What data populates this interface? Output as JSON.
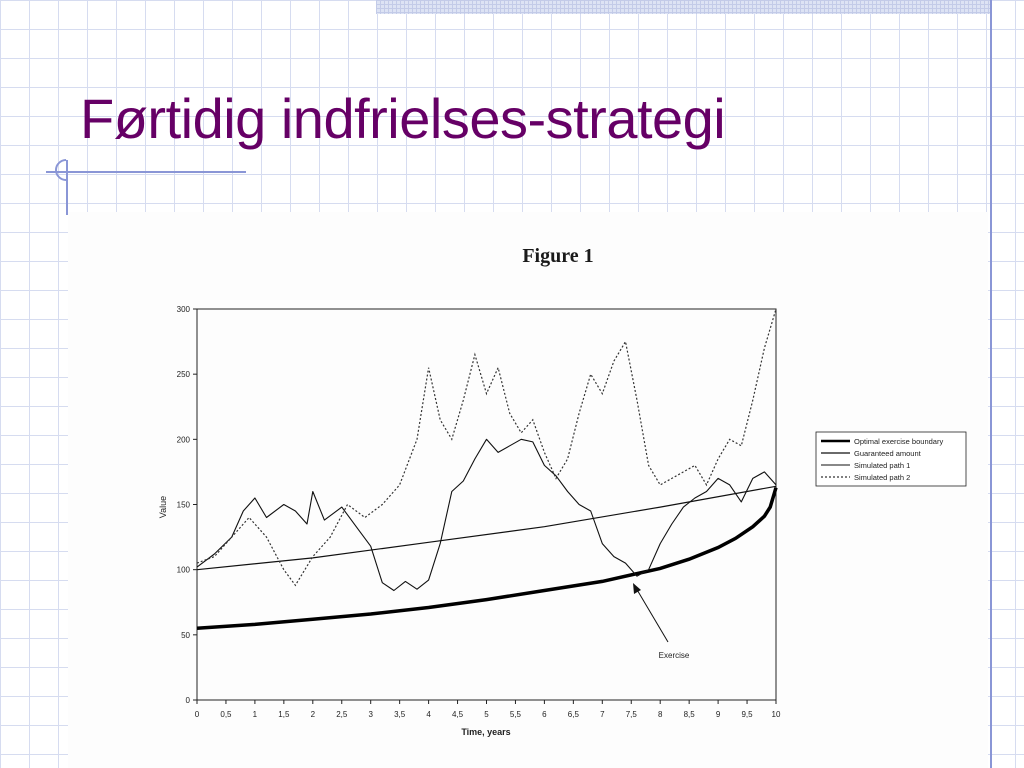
{
  "slide": {
    "title": "Førtidig indfrielses-strategi"
  },
  "chart_data": {
    "type": "line",
    "title": "Figure 1",
    "xlabel": "Time, years",
    "ylabel": "Value",
    "xlim": [
      0,
      10
    ],
    "ylim": [
      0,
      300
    ],
    "xticks": [
      "0",
      "0,5",
      "1",
      "1,5",
      "2",
      "2,5",
      "3",
      "3,5",
      "4",
      "4,5",
      "5",
      "5,5",
      "6",
      "6,5",
      "7",
      "7,5",
      "8",
      "8,5",
      "9",
      "9,5",
      "10"
    ],
    "yticks": [
      "0",
      "50",
      "100",
      "150",
      "200",
      "250",
      "300"
    ],
    "legend_position": "right",
    "annotation": {
      "text": "Exercise",
      "x": 7.5,
      "y": 95
    },
    "series": [
      {
        "name": "Optimal exercise boundary",
        "style": "bold",
        "x": [
          0,
          1,
          2,
          3,
          4,
          5,
          6,
          7,
          8,
          8.5,
          9,
          9.3,
          9.6,
          9.8,
          9.9,
          10
        ],
        "y": [
          55,
          58,
          62,
          66,
          71,
          77,
          84,
          91,
          101,
          108,
          117,
          124,
          133,
          141,
          148,
          163
        ]
      },
      {
        "name": "Guaranteed amount",
        "style": "solid",
        "x": [
          0,
          2,
          4,
          6,
          8,
          10
        ],
        "y": [
          100,
          109,
          121,
          133,
          148,
          164
        ]
      },
      {
        "name": "Simulated path 1",
        "style": "thin",
        "x": [
          0,
          0.3,
          0.6,
          0.8,
          1.0,
          1.2,
          1.5,
          1.7,
          1.9,
          2.0,
          2.2,
          2.5,
          2.8,
          3.0,
          3.2,
          3.4,
          3.6,
          3.8,
          4.0,
          4.2,
          4.4,
          4.6,
          4.8,
          5.0,
          5.2,
          5.4,
          5.6,
          5.8,
          6.0,
          6.2,
          6.4,
          6.6,
          6.8,
          7.0,
          7.2,
          7.4,
          7.6,
          7.8,
          8.0,
          8.2,
          8.4,
          8.6,
          8.8,
          9.0,
          9.2,
          9.4,
          9.6,
          9.8,
          10.0
        ],
        "y": [
          102,
          112,
          125,
          145,
          155,
          140,
          150,
          145,
          135,
          160,
          138,
          148,
          130,
          118,
          90,
          84,
          91,
          85,
          92,
          120,
          160,
          168,
          185,
          200,
          190,
          195,
          200,
          198,
          180,
          172,
          160,
          150,
          145,
          120,
          110,
          105,
          95,
          100,
          120,
          135,
          148,
          155,
          160,
          170,
          165,
          152,
          170,
          175,
          165
        ]
      },
      {
        "name": "Simulated path 2",
        "style": "dotted",
        "x": [
          0,
          0.3,
          0.6,
          0.9,
          1.2,
          1.5,
          1.7,
          2.0,
          2.3,
          2.6,
          2.9,
          3.2,
          3.5,
          3.8,
          4.0,
          4.2,
          4.4,
          4.6,
          4.8,
          5.0,
          5.2,
          5.4,
          5.6,
          5.8,
          6.0,
          6.2,
          6.4,
          6.6,
          6.8,
          7.0,
          7.2,
          7.4,
          7.6,
          7.8,
          8.0,
          8.2,
          8.4,
          8.6,
          8.8,
          9.0,
          9.2,
          9.4,
          9.6,
          9.8,
          10.0
        ],
        "y": [
          105,
          110,
          125,
          140,
          125,
          100,
          88,
          110,
          125,
          150,
          140,
          150,
          165,
          200,
          255,
          215,
          200,
          230,
          265,
          235,
          255,
          220,
          205,
          215,
          190,
          170,
          185,
          220,
          250,
          235,
          260,
          275,
          230,
          180,
          165,
          170,
          175,
          180,
          165,
          185,
          200,
          195,
          230,
          270,
          300
        ]
      }
    ]
  }
}
